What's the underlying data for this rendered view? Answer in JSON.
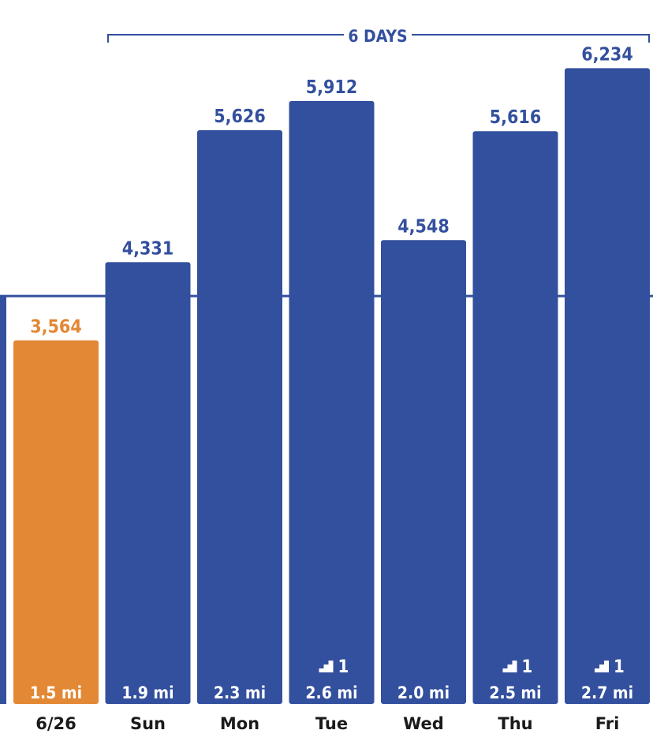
{
  "colors": {
    "bar": "#33509e",
    "highlight": "#e38834",
    "text_blue": "#33509e",
    "label": "#1a1a1a",
    "background": "#ffffff"
  },
  "streak": {
    "label": "6 DAYS"
  },
  "chart_data": {
    "type": "bar",
    "title": "",
    "xlabel": "",
    "ylabel": "",
    "ylim": [
      0,
      6500
    ],
    "goal_line": 4000,
    "categories": [
      "6/26",
      "Sun",
      "Mon",
      "Tue",
      "Wed",
      "Thu",
      "Fri"
    ],
    "values": [
      3564,
      4331,
      5626,
      5912,
      4548,
      5616,
      6234
    ],
    "value_labels": [
      "3,564",
      "4,331",
      "5,626",
      "5,912",
      "4,548",
      "5,616",
      "6,234"
    ],
    "distances": [
      "1.5 mi",
      "1.9 mi",
      "2.3 mi",
      "2.6 mi",
      "2.0 mi",
      "2.5 mi",
      "2.7 mi"
    ],
    "floors": [
      null,
      null,
      null,
      "1",
      null,
      "1",
      "1"
    ],
    "highlighted": [
      true,
      false,
      false,
      false,
      false,
      false,
      false
    ],
    "floors_icon": "stairs-icon"
  }
}
